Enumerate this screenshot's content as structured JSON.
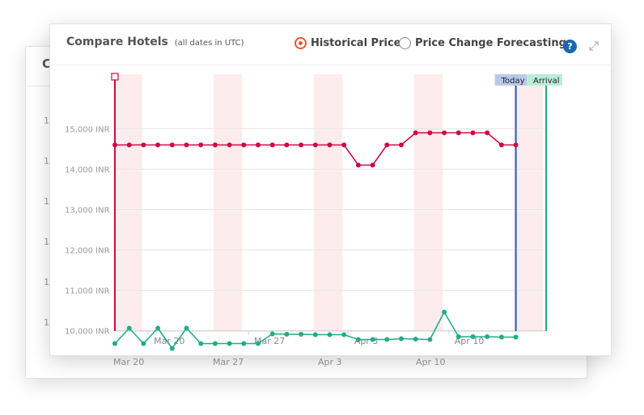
{
  "back_panel": {
    "title": "Compare Hotels",
    "y_ticks": [
      "15,000 INR",
      "14,000 INR",
      "13,000 INR",
      "12,000 INR",
      "11,000 INR",
      "10,000 INR"
    ],
    "x_ticks": [
      "Mar 20",
      "Mar 27",
      "Apr 3",
      "Apr 10"
    ]
  },
  "header": {
    "title": "Compare Hotels",
    "subtitle": "(all dates in UTC)"
  },
  "mode_toggle": {
    "historical_label": "Historical Price",
    "forecast_label": "Price Change Forecasting",
    "selected": "historical"
  },
  "icons": {
    "help": "question-circle-icon",
    "help_glyph": "?",
    "expand": "expand-arrows-icon"
  },
  "colors": {
    "series_red": "#cc0a4a",
    "series_green": "#1fae85",
    "today_line": "#2b59b3",
    "arrival_line": "#1fae85",
    "weekend_band": "#fdecee",
    "accent_radio": "#e05a2b",
    "help_icon": "#1a66b4"
  },
  "chart_data": {
    "type": "line",
    "ylim": [
      9700,
      15400
    ],
    "y_ticks": [
      10000,
      11000,
      12000,
      13000,
      14000,
      15000
    ],
    "y_tick_labels": [
      "10,000 INR",
      "11,000 INR",
      "12,000 INR",
      "13,000 INR",
      "14,000 INR",
      "15,000 INR"
    ],
    "x_start": "Mar 17",
    "x_ticks": [
      {
        "day": 20,
        "label": "Mar 20"
      },
      {
        "day": 27,
        "label": "Mar 27"
      },
      {
        "day": 34,
        "label": "Apr 3"
      },
      {
        "day": 41,
        "label": "Apr 10"
      }
    ],
    "weekend_bands": [
      [
        17,
        19
      ],
      [
        24,
        26
      ],
      [
        31,
        33
      ],
      [
        38,
        40
      ],
      [
        45,
        47
      ]
    ],
    "markers": [
      {
        "label": "Today",
        "day": 45,
        "color": "#2b59b3",
        "bg": "#b8c9ec"
      },
      {
        "label": "Arrival",
        "day": 47,
        "color": "#1fae85",
        "bg": "#b9ecd9"
      }
    ],
    "series": [
      {
        "color": "#cc0a4a",
        "x": [
          17,
          18,
          19,
          20,
          21,
          22,
          23,
          24,
          25,
          26,
          27,
          28,
          29,
          30,
          31,
          32,
          33,
          34,
          35,
          36,
          37,
          38,
          39,
          40,
          41,
          42,
          43,
          44,
          45
        ],
        "values": [
          14600,
          14600,
          14600,
          14600,
          14600,
          14600,
          14600,
          14600,
          14600,
          14600,
          14600,
          14600,
          14600,
          14600,
          14600,
          14600,
          14600,
          14100,
          14100,
          14600,
          14600,
          14900,
          14900,
          14900,
          14900,
          14900,
          14900,
          14600,
          14600
        ]
      },
      {
        "color": "#1fae85",
        "x": [
          17,
          18,
          19,
          20,
          21,
          22,
          23,
          24,
          25,
          26,
          27,
          28,
          29,
          30,
          31,
          32,
          33,
          34,
          35,
          36,
          37,
          38,
          39,
          40,
          41,
          42,
          43,
          44,
          45
        ],
        "values": [
          9680,
          10060,
          9680,
          10060,
          9560,
          10060,
          9680,
          9680,
          9680,
          9680,
          9680,
          9920,
          9910,
          9910,
          9900,
          9900,
          9900,
          9780,
          9780,
          9780,
          9800,
          9790,
          9780,
          10460,
          9850,
          9850,
          9850,
          9840,
          9840
        ]
      }
    ]
  }
}
